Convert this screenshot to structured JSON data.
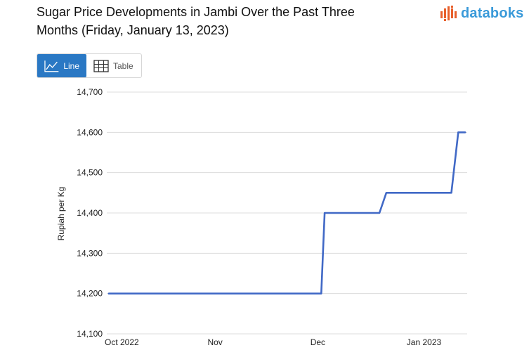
{
  "header": {
    "title_line1": "Sugar Price Developments in Jambi Over the Past Three",
    "title_line2": "Months (Friday, January 13, 2023)",
    "brand": "databoks"
  },
  "view_toggle": {
    "line_label": "Line",
    "table_label": "Table",
    "selected": "Line",
    "active_color": "#2a78c4"
  },
  "icons": {
    "line": "line-chart-icon",
    "table": "table-grid-icon",
    "logo": "databoks-logo-icon"
  },
  "chart_data": {
    "type": "line",
    "ylabel": "Rupiah per Kg",
    "ylim": [
      14100,
      14700
    ],
    "y_ticks": [
      14100,
      14200,
      14300,
      14400,
      14500,
      14600,
      14700
    ],
    "y_tick_labels": [
      "14,100",
      "14,200",
      "14,300",
      "14,400",
      "14,500",
      "14,600",
      "14,700"
    ],
    "x_ticks": [
      "2022-10-01",
      "2022-11-01",
      "2022-12-01",
      "2023-01-01"
    ],
    "x_tick_labels": [
      "Oct 2022",
      "Nov",
      "Dec",
      "Jan 2023"
    ],
    "grid": true,
    "series_color": "#4169c6",
    "series": [
      {
        "x": [
          "2022-10-01",
          "2022-12-02",
          "2022-12-03",
          "2022-12-19",
          "2022-12-21",
          "2023-01-09",
          "2023-01-11",
          "2023-01-13"
        ],
        "values": [
          14200,
          14200,
          14400,
          14400,
          14450,
          14450,
          14600,
          14600
        ]
      }
    ]
  }
}
